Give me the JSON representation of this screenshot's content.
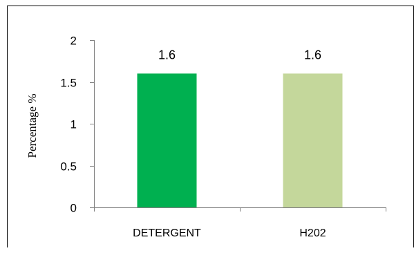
{
  "chart_data": {
    "type": "bar",
    "categories": [
      "DETERGENT",
      "H202"
    ],
    "values": [
      1.6,
      1.6
    ],
    "data_labels": [
      "1.6",
      "1.6"
    ],
    "colors": [
      "#00B050",
      "#C4D79B"
    ],
    "xlabel": "",
    "ylabel": "Percentage %",
    "ylim": [
      0,
      2
    ],
    "yticks": [
      0,
      0.5,
      1,
      1.5,
      2
    ],
    "ytick_labels": [
      "0",
      "0.5",
      "1",
      "1.5",
      "2"
    ],
    "grid": false,
    "legend": "none"
  }
}
